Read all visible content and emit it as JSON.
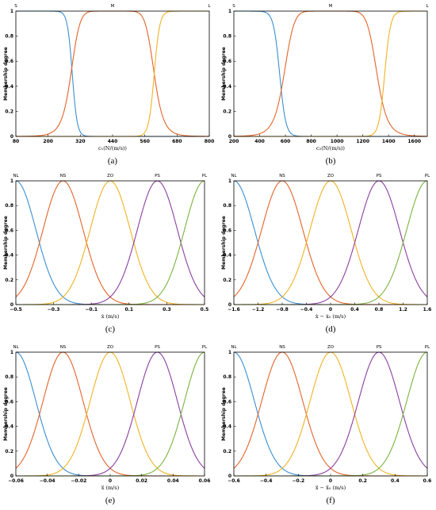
{
  "colors": [
    "#3b8fd1",
    "#e3642a",
    "#f0b323",
    "#8b3fa0",
    "#7db23f"
  ],
  "chart_data": [
    {
      "type": "line",
      "caption": "(a)",
      "title": "",
      "xlabel": "c₁(N/(m/s))",
      "ylabel": "Membership degree",
      "xlim": [
        80,
        800
      ],
      "ylim": [
        0,
        1
      ],
      "xticks": [
        80,
        200,
        320,
        440,
        560,
        680,
        800
      ],
      "yticks": [
        0,
        0.2,
        0.4,
        0.6,
        0.8,
        1
      ],
      "grid": false,
      "mf_labels": [
        {
          "name": "S",
          "x": 80
        },
        {
          "name": "M",
          "x": 440
        },
        {
          "name": "L",
          "x": 800
        }
      ],
      "series": [
        {
          "name": "S",
          "shape": "z",
          "a": 250,
          "b": 330
        },
        {
          "name": "M",
          "shape": "gbell",
          "center": 440,
          "width": 155,
          "slope": 4.5
        },
        {
          "name": "L",
          "shape": "s",
          "a": 550,
          "b": 640
        }
      ]
    },
    {
      "type": "line",
      "caption": "(b)",
      "title": "",
      "xlabel": "c₂(N/(m/s))",
      "ylabel": "Membership degree",
      "xlim": [
        200,
        1700
      ],
      "ylim": [
        0,
        1
      ],
      "xticks": [
        200,
        400,
        600,
        800,
        1000,
        1200,
        1400,
        1600
      ],
      "yticks": [
        0,
        0.2,
        0.4,
        0.6,
        0.8,
        1
      ],
      "grid": false,
      "mf_labels": [
        {
          "name": "S",
          "x": 200
        },
        {
          "name": "M",
          "x": 950
        },
        {
          "name": "L",
          "x": 1700
        }
      ],
      "series": [
        {
          "name": "S",
          "shape": "z",
          "a": 450,
          "b": 660
        },
        {
          "name": "M",
          "shape": "gbell",
          "center": 950,
          "width": 360,
          "slope": 4.5
        },
        {
          "name": "L",
          "shape": "s",
          "a": 1270,
          "b": 1470
        }
      ]
    },
    {
      "type": "line",
      "caption": "(c)",
      "title": "",
      "xlabel": "ẋ (m/s)",
      "ylabel": "Membership degree",
      "xlim": [
        -0.5,
        0.5
      ],
      "ylim": [
        0,
        1
      ],
      "xticks": [
        -0.5,
        -0.3,
        -0.1,
        0.1,
        0.3,
        0.5
      ],
      "xtick_labels": [
        "−0.5",
        "−0.3",
        "−0.1",
        "0.1",
        "0.3",
        "0.5"
      ],
      "yticks": [
        0,
        0.2,
        0.4,
        0.6,
        0.8,
        1
      ],
      "grid": false,
      "mf_labels": [
        {
          "name": "NL",
          "x": -0.5
        },
        {
          "name": "NS",
          "x": -0.25
        },
        {
          "name": "ZO",
          "x": 0
        },
        {
          "name": "PS",
          "x": 0.25
        },
        {
          "name": "PL",
          "x": 0.5
        }
      ],
      "series": [
        {
          "name": "NL",
          "shape": "gauss",
          "center": -0.5,
          "sigma": 0.106
        },
        {
          "name": "NS",
          "shape": "gauss",
          "center": -0.25,
          "sigma": 0.106
        },
        {
          "name": "ZO",
          "shape": "gauss",
          "center": 0,
          "sigma": 0.106
        },
        {
          "name": "PS",
          "shape": "gauss",
          "center": 0.25,
          "sigma": 0.106
        },
        {
          "name": "PL",
          "shape": "gauss",
          "center": 0.5,
          "sigma": 0.106
        }
      ]
    },
    {
      "type": "line",
      "caption": "(d)",
      "title": "",
      "xlabel": "ẋ − ẋ₀ (m/s)",
      "ylabel": "Membership degree",
      "xlim": [
        -1.6,
        1.6
      ],
      "ylim": [
        0,
        1
      ],
      "xticks": [
        -1.6,
        -1.2,
        -0.8,
        -0.4,
        0,
        0.4,
        0.8,
        1.2,
        1.6
      ],
      "xtick_labels": [
        "−1.6",
        "−1.2",
        "−0.8",
        "−0.4",
        "0",
        "0.4",
        "0.8",
        "1.2",
        "1.6"
      ],
      "yticks": [
        0,
        0.2,
        0.4,
        0.6,
        0.8,
        1
      ],
      "grid": false,
      "mf_labels": [
        {
          "name": "NL",
          "x": -1.6
        },
        {
          "name": "NS",
          "x": -0.8
        },
        {
          "name": "ZO",
          "x": 0
        },
        {
          "name": "PS",
          "x": 0.8
        },
        {
          "name": "PL",
          "x": 1.6
        }
      ],
      "series": [
        {
          "name": "NL",
          "shape": "gauss",
          "center": -1.6,
          "sigma": 0.34
        },
        {
          "name": "NS",
          "shape": "gauss",
          "center": -0.8,
          "sigma": 0.34
        },
        {
          "name": "ZO",
          "shape": "gauss",
          "center": 0,
          "sigma": 0.34
        },
        {
          "name": "PS",
          "shape": "gauss",
          "center": 0.8,
          "sigma": 0.34
        },
        {
          "name": "PL",
          "shape": "gauss",
          "center": 1.6,
          "sigma": 0.34
        }
      ]
    },
    {
      "type": "line",
      "caption": "(e)",
      "title": "",
      "xlabel": "ẍ (m/s)",
      "ylabel": "Membership degree",
      "xlim": [
        -0.06,
        0.06
      ],
      "ylim": [
        0,
        1
      ],
      "xticks": [
        -0.06,
        -0.04,
        -0.02,
        0,
        0.02,
        0.04,
        0.06
      ],
      "xtick_labels": [
        "−0.06",
        "−0.04",
        "−0.02",
        "0",
        "0.02",
        "0.04",
        "0.06"
      ],
      "yticks": [
        0,
        0.2,
        0.4,
        0.6,
        0.8,
        1
      ],
      "grid": false,
      "mf_labels": [
        {
          "name": "NL",
          "x": -0.06
        },
        {
          "name": "NS",
          "x": -0.03
        },
        {
          "name": "ZO",
          "x": 0
        },
        {
          "name": "PS",
          "x": 0.03
        },
        {
          "name": "PL",
          "x": 0.06
        }
      ],
      "series": [
        {
          "name": "NL",
          "shape": "gauss",
          "center": -0.06,
          "sigma": 0.0127
        },
        {
          "name": "NS",
          "shape": "gauss",
          "center": -0.03,
          "sigma": 0.0127
        },
        {
          "name": "ZO",
          "shape": "gauss",
          "center": 0,
          "sigma": 0.0127
        },
        {
          "name": "PS",
          "shape": "gauss",
          "center": 0.03,
          "sigma": 0.0127
        },
        {
          "name": "PL",
          "shape": "gauss",
          "center": 0.06,
          "sigma": 0.0127
        }
      ]
    },
    {
      "type": "line",
      "caption": "(f)",
      "title": "",
      "xlabel": "ẍ − ẍ₀ (m/s)",
      "ylabel": "Membership degree",
      "xlim": [
        -0.6,
        0.6
      ],
      "ylim": [
        0,
        1
      ],
      "xticks": [
        -0.6,
        -0.4,
        -0.2,
        0,
        0.2,
        0.4,
        0.6
      ],
      "xtick_labels": [
        "−0.6",
        "−0.4",
        "−0.2",
        "0",
        "0.2",
        "0.4",
        "0.6"
      ],
      "yticks": [
        0,
        0.2,
        0.4,
        0.6,
        0.8,
        1
      ],
      "grid": false,
      "mf_labels": [
        {
          "name": "NL",
          "x": -0.6
        },
        {
          "name": "NS",
          "x": -0.3
        },
        {
          "name": "ZO",
          "x": 0
        },
        {
          "name": "PS",
          "x": 0.3
        },
        {
          "name": "PL",
          "x": 0.6
        }
      ],
      "series": [
        {
          "name": "NL",
          "shape": "gauss",
          "center": -0.6,
          "sigma": 0.127
        },
        {
          "name": "NS",
          "shape": "gauss",
          "center": -0.3,
          "sigma": 0.127
        },
        {
          "name": "ZO",
          "shape": "gauss",
          "center": 0,
          "sigma": 0.127
        },
        {
          "name": "PS",
          "shape": "gauss",
          "center": 0.3,
          "sigma": 0.127
        },
        {
          "name": "PL",
          "shape": "gauss",
          "center": 0.6,
          "sigma": 0.127
        }
      ]
    }
  ]
}
